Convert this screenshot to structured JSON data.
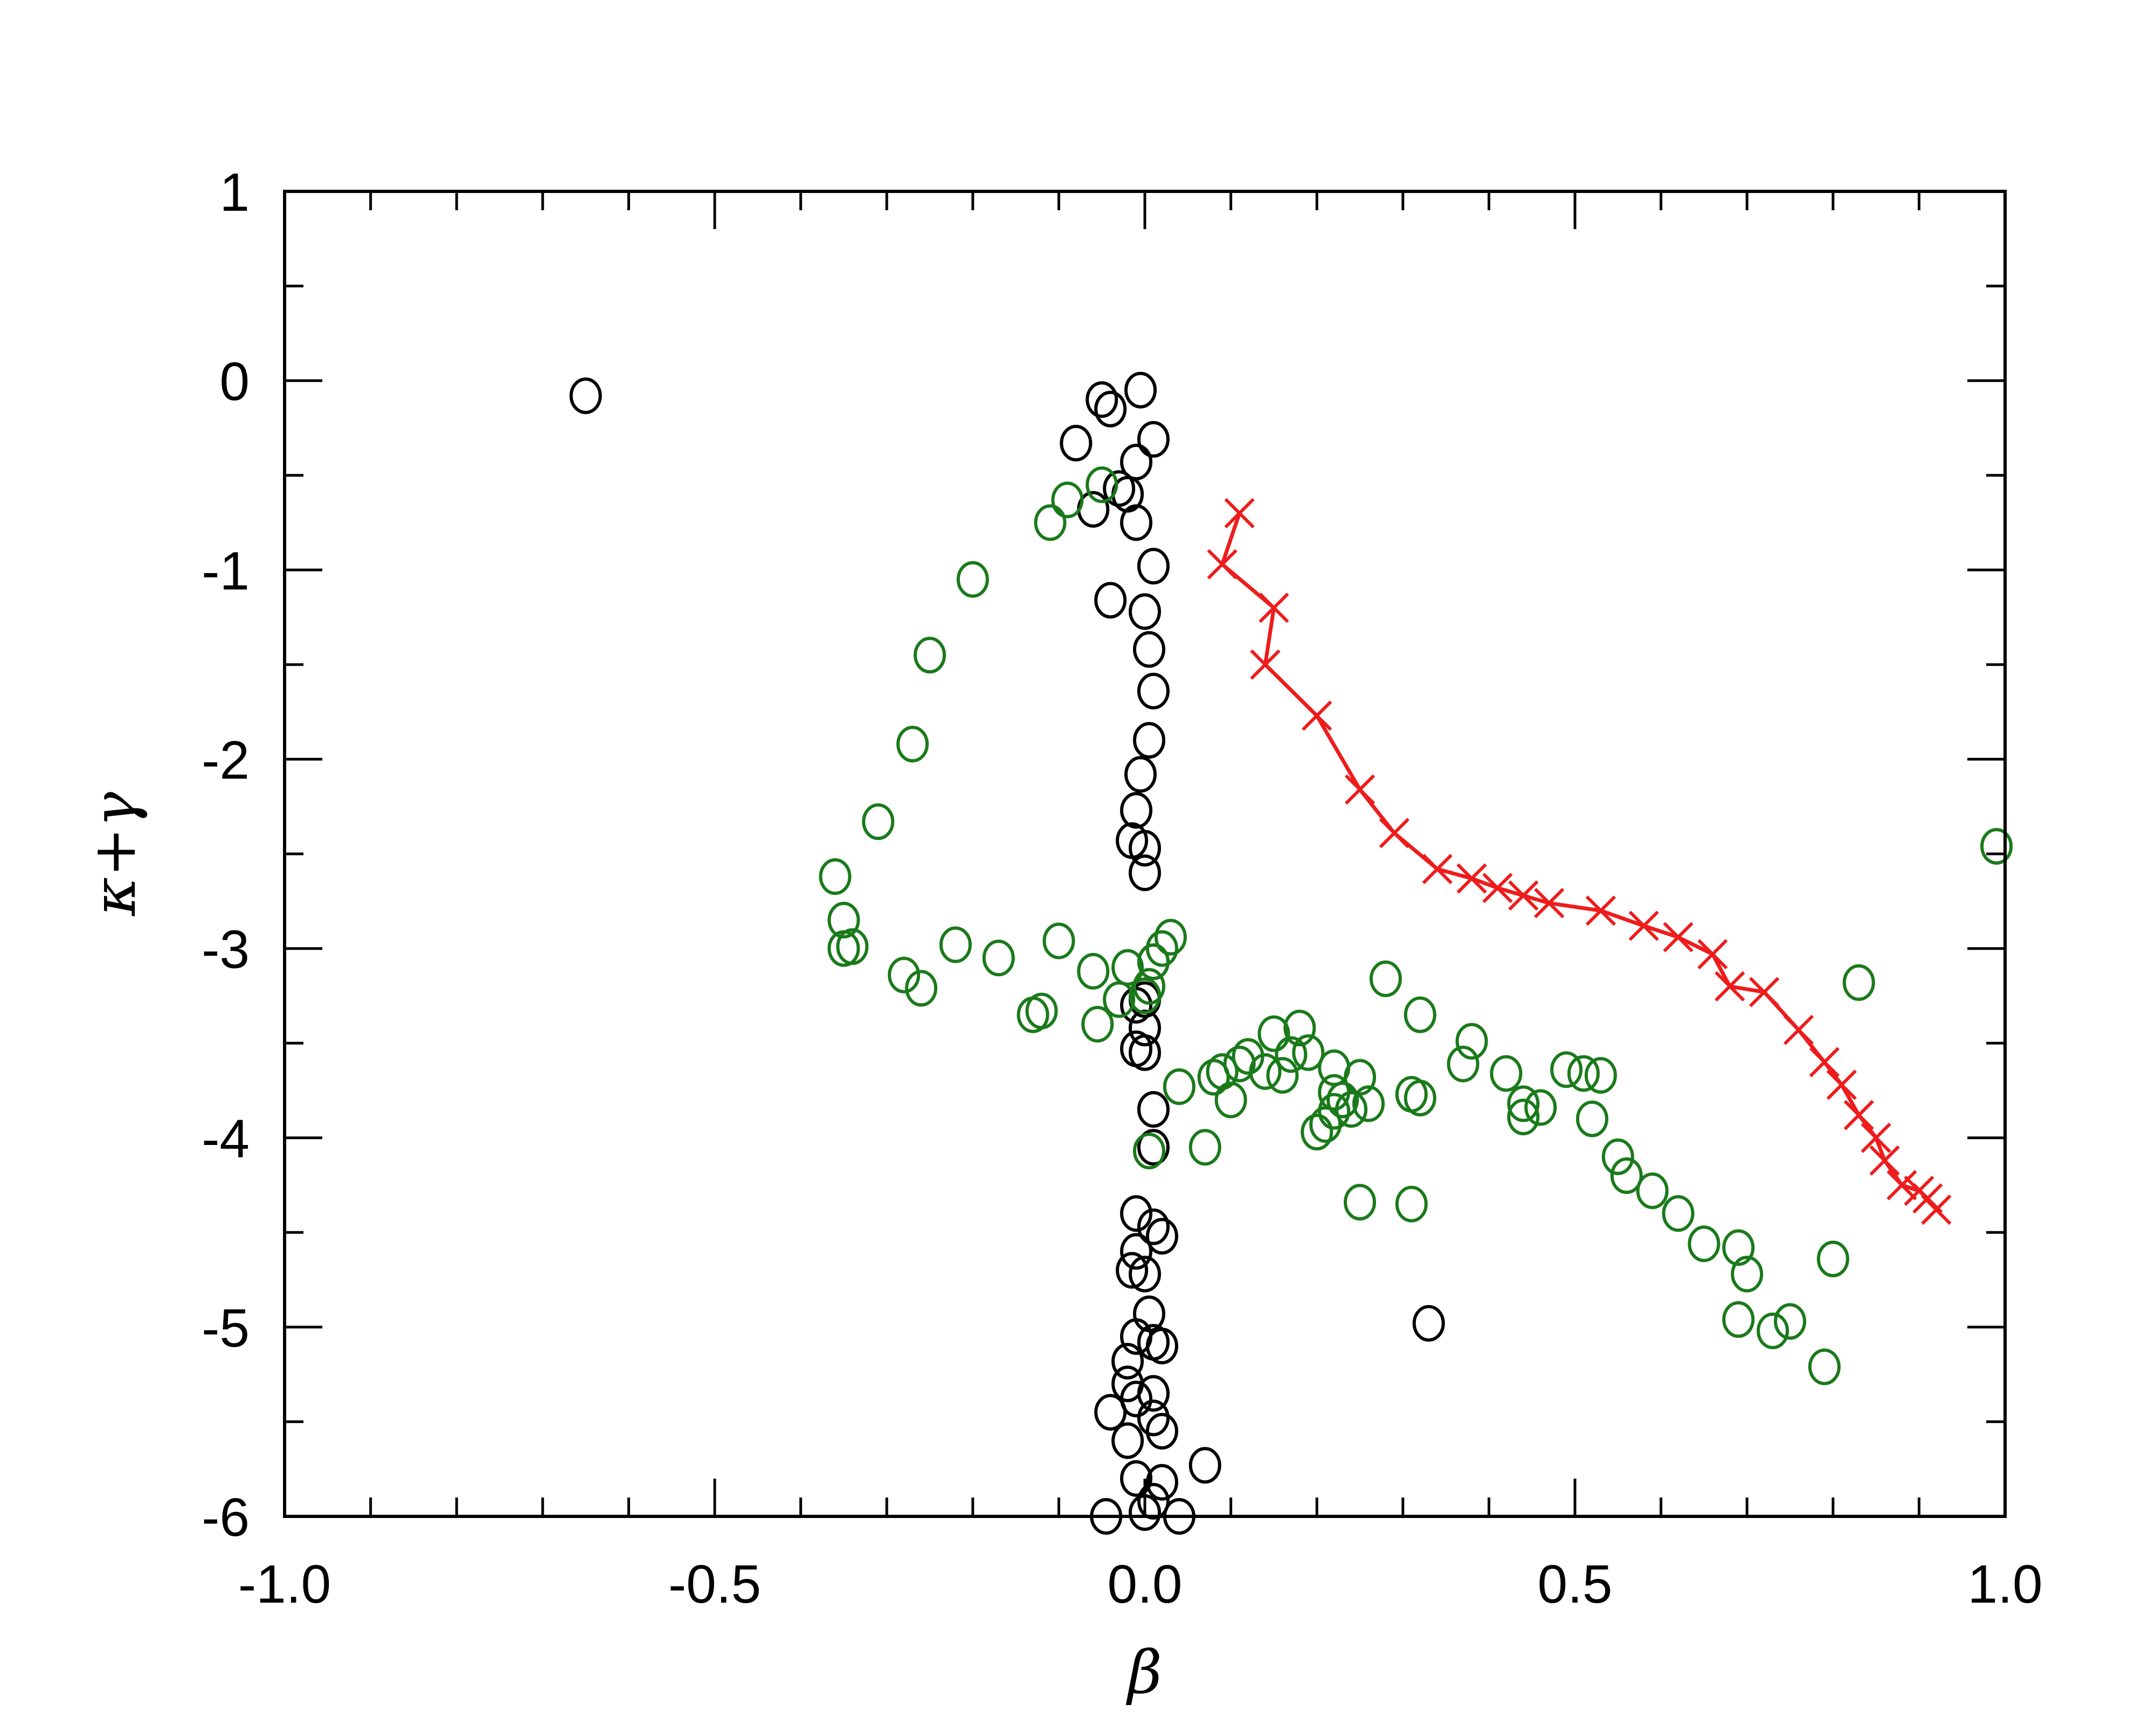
{
  "chart_data": {
    "type": "scatter",
    "xlabel": "β",
    "ylabel": "κ+γ",
    "xlim": [
      -1.0,
      1.0
    ],
    "ylim": [
      -6,
      1
    ],
    "x_ticks": [
      -1.0,
      -0.5,
      0.0,
      0.5,
      1.0
    ],
    "x_tick_labels": [
      "-1.0",
      "-0.5",
      "0.0",
      "0.5",
      "1.0"
    ],
    "y_ticks": [
      1,
      0,
      -1,
      -2,
      -3,
      -4,
      -5,
      -6
    ],
    "y_tick_labels": [
      "1",
      "0",
      "-1",
      "-2",
      "-3",
      "-4",
      "-5",
      "-6"
    ],
    "grid": false,
    "legend": "none",
    "series": [
      {
        "marker": "circle",
        "line": false,
        "color": "#000000",
        "points": [
          [
            -0.65,
            -0.08
          ],
          [
            -0.05,
            -0.1
          ],
          [
            -0.04,
            -0.15
          ],
          [
            -0.005,
            -0.05
          ],
          [
            -0.08,
            -0.33
          ],
          [
            0.01,
            -0.31
          ],
          [
            -0.01,
            -0.43
          ],
          [
            -0.03,
            -0.57
          ],
          [
            -0.02,
            -0.6
          ],
          [
            -0.06,
            -0.68
          ],
          [
            -0.01,
            -0.75
          ],
          [
            0.01,
            -0.98
          ],
          [
            -0.04,
            -1.16
          ],
          [
            0.0,
            -1.22
          ],
          [
            0.005,
            -1.42
          ],
          [
            0.01,
            -1.64
          ],
          [
            0.005,
            -1.9
          ],
          [
            -0.005,
            -2.08
          ],
          [
            -0.01,
            -2.27
          ],
          [
            -0.015,
            -2.43
          ],
          [
            0.0,
            -2.47
          ],
          [
            0.0,
            -2.6
          ],
          [
            0.01,
            -3.07
          ],
          [
            0.0,
            -3.27
          ],
          [
            -0.01,
            -3.3
          ],
          [
            0.0,
            -3.42
          ],
          [
            -0.01,
            -3.53
          ],
          [
            0.0,
            -3.55
          ],
          [
            0.01,
            -3.85
          ],
          [
            0.01,
            -4.05
          ],
          [
            -0.01,
            -4.4
          ],
          [
            0.01,
            -4.47
          ],
          [
            0.02,
            -4.52
          ],
          [
            -0.01,
            -4.6
          ],
          [
            -0.015,
            -4.7
          ],
          [
            0.0,
            -4.72
          ],
          [
            0.005,
            -4.93
          ],
          [
            -0.01,
            -5.05
          ],
          [
            0.01,
            -5.08
          ],
          [
            0.02,
            -5.1
          ],
          [
            -0.02,
            -5.18
          ],
          [
            -0.02,
            -5.3
          ],
          [
            0.01,
            -5.35
          ],
          [
            -0.01,
            -5.38
          ],
          [
            -0.04,
            -5.45
          ],
          [
            0.01,
            -5.48
          ],
          [
            0.02,
            -5.55
          ],
          [
            -0.02,
            -5.6
          ],
          [
            0.07,
            -5.73
          ],
          [
            -0.01,
            -5.8
          ],
          [
            0.02,
            -5.82
          ],
          [
            0.01,
            -5.92
          ],
          [
            -0.045,
            -6.0
          ],
          [
            0.0,
            -5.98
          ],
          [
            0.04,
            -6.0
          ],
          [
            0.33,
            -4.98
          ]
        ]
      },
      {
        "marker": "circle",
        "line": false,
        "color": "#1a7a1a",
        "points": [
          [
            -0.11,
            -0.75
          ],
          [
            -0.09,
            -0.63
          ],
          [
            -0.05,
            -0.55
          ],
          [
            -0.2,
            -1.05
          ],
          [
            -0.25,
            -1.45
          ],
          [
            -0.27,
            -1.92
          ],
          [
            -0.31,
            -2.33
          ],
          [
            -0.36,
            -2.62
          ],
          [
            -0.35,
            -2.85
          ],
          [
            -0.35,
            -3.0
          ],
          [
            -0.34,
            -2.99
          ],
          [
            -0.28,
            -3.14
          ],
          [
            -0.26,
            -3.21
          ],
          [
            -0.22,
            -2.98
          ],
          [
            -0.17,
            -3.05
          ],
          [
            -0.13,
            -3.35
          ],
          [
            -0.12,
            -3.33
          ],
          [
            -0.1,
            -2.96
          ],
          [
            -0.06,
            -3.12
          ],
          [
            -0.055,
            -3.4
          ],
          [
            -0.03,
            -3.27
          ],
          [
            -0.02,
            -3.1
          ],
          [
            0.01,
            -3.07
          ],
          [
            0.02,
            -3.0
          ],
          [
            0.03,
            -2.94
          ],
          [
            0.005,
            -3.2
          ],
          [
            0.0,
            -3.25
          ],
          [
            0.005,
            -4.07
          ],
          [
            0.04,
            -3.73
          ],
          [
            0.07,
            -4.05
          ],
          [
            0.08,
            -3.68
          ],
          [
            0.09,
            -3.65
          ],
          [
            0.1,
            -3.8
          ],
          [
            0.11,
            -3.61
          ],
          [
            0.12,
            -3.57
          ],
          [
            0.14,
            -3.65
          ],
          [
            0.15,
            -3.45
          ],
          [
            0.16,
            -3.67
          ],
          [
            0.17,
            -3.56
          ],
          [
            0.18,
            -3.42
          ],
          [
            0.19,
            -3.55
          ],
          [
            0.2,
            -3.97
          ],
          [
            0.21,
            -3.93
          ],
          [
            0.22,
            -3.63
          ],
          [
            0.22,
            -3.86
          ],
          [
            0.23,
            -3.8
          ],
          [
            0.24,
            -3.85
          ],
          [
            0.22,
            -3.76
          ],
          [
            0.25,
            -3.68
          ],
          [
            0.26,
            -3.82
          ],
          [
            0.25,
            -4.34
          ],
          [
            0.28,
            -3.16
          ],
          [
            0.31,
            -3.77
          ],
          [
            0.32,
            -3.35
          ],
          [
            0.31,
            -4.35
          ],
          [
            0.32,
            -3.79
          ],
          [
            0.37,
            -3.61
          ],
          [
            0.38,
            -3.49
          ],
          [
            0.42,
            -3.66
          ],
          [
            0.44,
            -3.82
          ],
          [
            0.44,
            -3.89
          ],
          [
            0.46,
            -3.84
          ],
          [
            0.49,
            -3.64
          ],
          [
            0.51,
            -3.66
          ],
          [
            0.52,
            -3.9
          ],
          [
            0.53,
            -3.67
          ],
          [
            0.55,
            -4.1
          ],
          [
            0.56,
            -4.2
          ],
          [
            0.59,
            -4.28
          ],
          [
            0.62,
            -4.4
          ],
          [
            0.65,
            -4.56
          ],
          [
            0.69,
            -4.58
          ],
          [
            0.7,
            -4.72
          ],
          [
            0.69,
            -4.96
          ],
          [
            0.73,
            -5.02
          ],
          [
            0.75,
            -4.97
          ],
          [
            0.79,
            -5.21
          ],
          [
            0.8,
            -4.64
          ],
          [
            0.83,
            -3.18
          ],
          [
            0.99,
            -2.46
          ]
        ]
      },
      {
        "marker": "x",
        "line": true,
        "color": "#ee1c1c",
        "points": [
          [
            0.11,
            -0.7
          ],
          [
            0.09,
            -0.97
          ],
          [
            0.15,
            -1.2
          ],
          [
            0.14,
            -1.5
          ],
          [
            0.2,
            -1.77
          ],
          [
            0.25,
            -2.16
          ],
          [
            0.29,
            -2.39
          ],
          [
            0.34,
            -2.58
          ],
          [
            0.38,
            -2.63
          ],
          [
            0.41,
            -2.68
          ],
          [
            0.44,
            -2.72
          ],
          [
            0.47,
            -2.76
          ],
          [
            0.53,
            -2.8
          ],
          [
            0.58,
            -2.88
          ],
          [
            0.62,
            -2.94
          ],
          [
            0.66,
            -3.03
          ],
          [
            0.68,
            -3.2
          ],
          [
            0.72,
            -3.23
          ],
          [
            0.76,
            -3.43
          ],
          [
            0.79,
            -3.6
          ],
          [
            0.81,
            -3.72
          ],
          [
            0.83,
            -3.88
          ],
          [
            0.85,
            -4.0
          ],
          [
            0.86,
            -4.12
          ],
          [
            0.88,
            -4.25
          ],
          [
            0.9,
            -4.28
          ],
          [
            0.91,
            -4.32
          ],
          [
            0.92,
            -4.38
          ]
        ]
      }
    ]
  }
}
